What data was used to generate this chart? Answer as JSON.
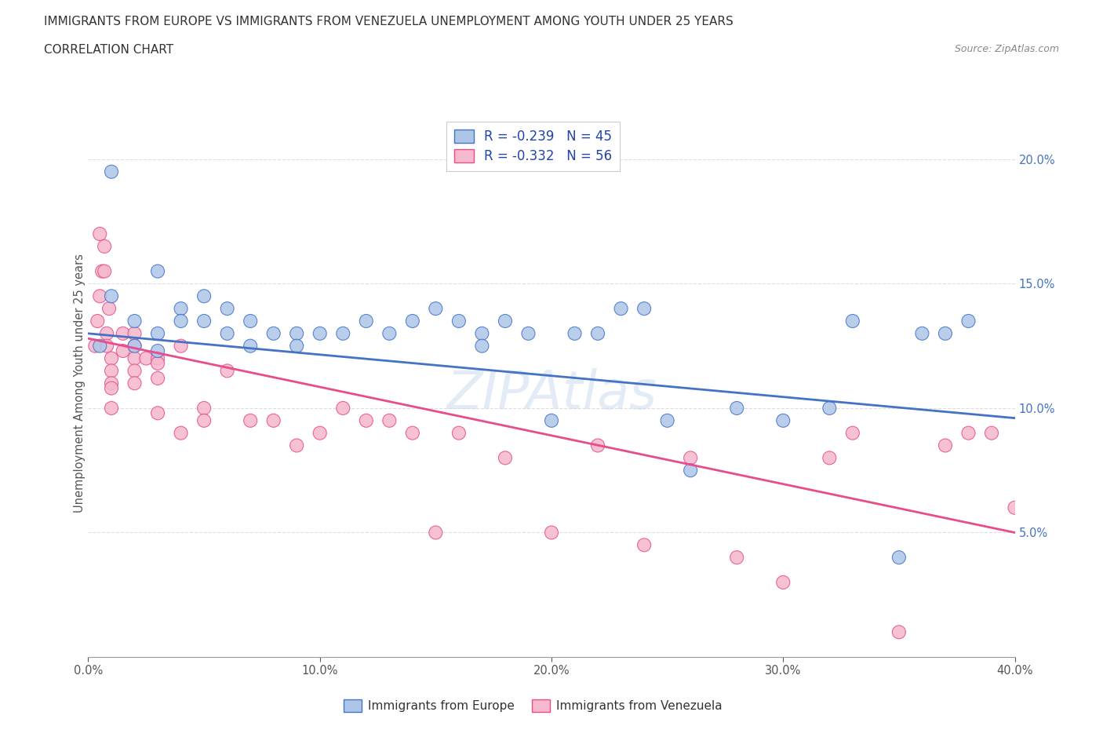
{
  "title_line1": "IMMIGRANTS FROM EUROPE VS IMMIGRANTS FROM VENEZUELA UNEMPLOYMENT AMONG YOUTH UNDER 25 YEARS",
  "title_line2": "CORRELATION CHART",
  "source_text": "Source: ZipAtlas.com",
  "ylabel": "Unemployment Among Youth under 25 years",
  "legend_label_europe": "Immigrants from Europe",
  "legend_label_venezuela": "Immigrants from Venezuela",
  "R_europe": -0.239,
  "N_europe": 45,
  "R_venezuela": -0.332,
  "N_venezuela": 56,
  "color_europe": "#adc6e8",
  "color_venezuela": "#f5b8cc",
  "line_color_europe": "#4472c4",
  "line_color_venezuela": "#e84c8b",
  "xmin": 0.0,
  "xmax": 0.4,
  "ymin": 0.0,
  "ymax": 0.22,
  "yticks": [
    0.05,
    0.1,
    0.15,
    0.2
  ],
  "xticks": [
    0.0,
    0.1,
    0.2,
    0.3,
    0.4
  ],
  "europe_x": [
    0.005,
    0.01,
    0.01,
    0.02,
    0.02,
    0.03,
    0.03,
    0.03,
    0.04,
    0.04,
    0.05,
    0.05,
    0.06,
    0.06,
    0.07,
    0.07,
    0.08,
    0.09,
    0.09,
    0.1,
    0.11,
    0.12,
    0.13,
    0.14,
    0.15,
    0.16,
    0.17,
    0.17,
    0.18,
    0.19,
    0.2,
    0.21,
    0.22,
    0.23,
    0.24,
    0.25,
    0.26,
    0.28,
    0.3,
    0.32,
    0.33,
    0.35,
    0.36,
    0.37,
    0.38
  ],
  "europe_y": [
    0.125,
    0.195,
    0.145,
    0.135,
    0.125,
    0.155,
    0.13,
    0.123,
    0.14,
    0.135,
    0.145,
    0.135,
    0.14,
    0.13,
    0.135,
    0.125,
    0.13,
    0.13,
    0.125,
    0.13,
    0.13,
    0.135,
    0.13,
    0.135,
    0.14,
    0.135,
    0.13,
    0.125,
    0.135,
    0.13,
    0.095,
    0.13,
    0.13,
    0.14,
    0.14,
    0.095,
    0.075,
    0.1,
    0.095,
    0.1,
    0.135,
    0.04,
    0.13,
    0.13,
    0.135
  ],
  "venezuela_x": [
    0.003,
    0.004,
    0.005,
    0.005,
    0.006,
    0.007,
    0.007,
    0.008,
    0.008,
    0.009,
    0.01,
    0.01,
    0.01,
    0.01,
    0.01,
    0.015,
    0.015,
    0.02,
    0.02,
    0.02,
    0.02,
    0.02,
    0.025,
    0.03,
    0.03,
    0.03,
    0.03,
    0.04,
    0.04,
    0.05,
    0.05,
    0.06,
    0.07,
    0.08,
    0.09,
    0.1,
    0.11,
    0.12,
    0.13,
    0.14,
    0.15,
    0.16,
    0.18,
    0.2,
    0.22,
    0.24,
    0.26,
    0.28,
    0.3,
    0.32,
    0.33,
    0.35,
    0.37,
    0.38,
    0.39,
    0.4
  ],
  "venezuela_y": [
    0.125,
    0.135,
    0.17,
    0.145,
    0.155,
    0.165,
    0.155,
    0.13,
    0.125,
    0.14,
    0.12,
    0.115,
    0.11,
    0.108,
    0.1,
    0.13,
    0.123,
    0.13,
    0.125,
    0.12,
    0.115,
    0.11,
    0.12,
    0.12,
    0.118,
    0.112,
    0.098,
    0.125,
    0.09,
    0.1,
    0.095,
    0.115,
    0.095,
    0.095,
    0.085,
    0.09,
    0.1,
    0.095,
    0.095,
    0.09,
    0.05,
    0.09,
    0.08,
    0.05,
    0.085,
    0.045,
    0.08,
    0.04,
    0.03,
    0.08,
    0.09,
    0.01,
    0.085,
    0.09,
    0.09,
    0.06
  ],
  "europe_sizes": [
    150,
    150,
    150,
    150,
    150,
    150,
    150,
    150,
    150,
    150,
    150,
    150,
    150,
    150,
    150,
    150,
    150,
    150,
    150,
    150,
    150,
    150,
    150,
    150,
    150,
    150,
    150,
    150,
    150,
    150,
    150,
    150,
    150,
    150,
    150,
    150,
    150,
    150,
    150,
    150,
    150,
    150,
    150,
    150,
    150
  ],
  "venezuela_sizes": [
    150,
    150,
    150,
    150,
    150,
    150,
    150,
    150,
    150,
    150,
    150,
    150,
    150,
    150,
    150,
    150,
    150,
    150,
    150,
    150,
    150,
    150,
    150,
    150,
    150,
    150,
    150,
    150,
    150,
    150,
    150,
    150,
    150,
    150,
    150,
    150,
    150,
    150,
    150,
    150,
    150,
    150,
    150,
    150,
    150,
    150,
    150,
    150,
    150,
    150,
    150,
    150,
    150,
    150,
    150,
    150
  ],
  "europe_line_x": [
    0.0,
    0.4
  ],
  "europe_line_y": [
    0.13,
    0.096
  ],
  "venezuela_line_x": [
    0.0,
    0.4
  ],
  "venezuela_line_y": [
    0.128,
    0.05
  ],
  "watermark_text": "ZIPAtlas",
  "grid_color": "#dddddd",
  "background_color": "#ffffff"
}
